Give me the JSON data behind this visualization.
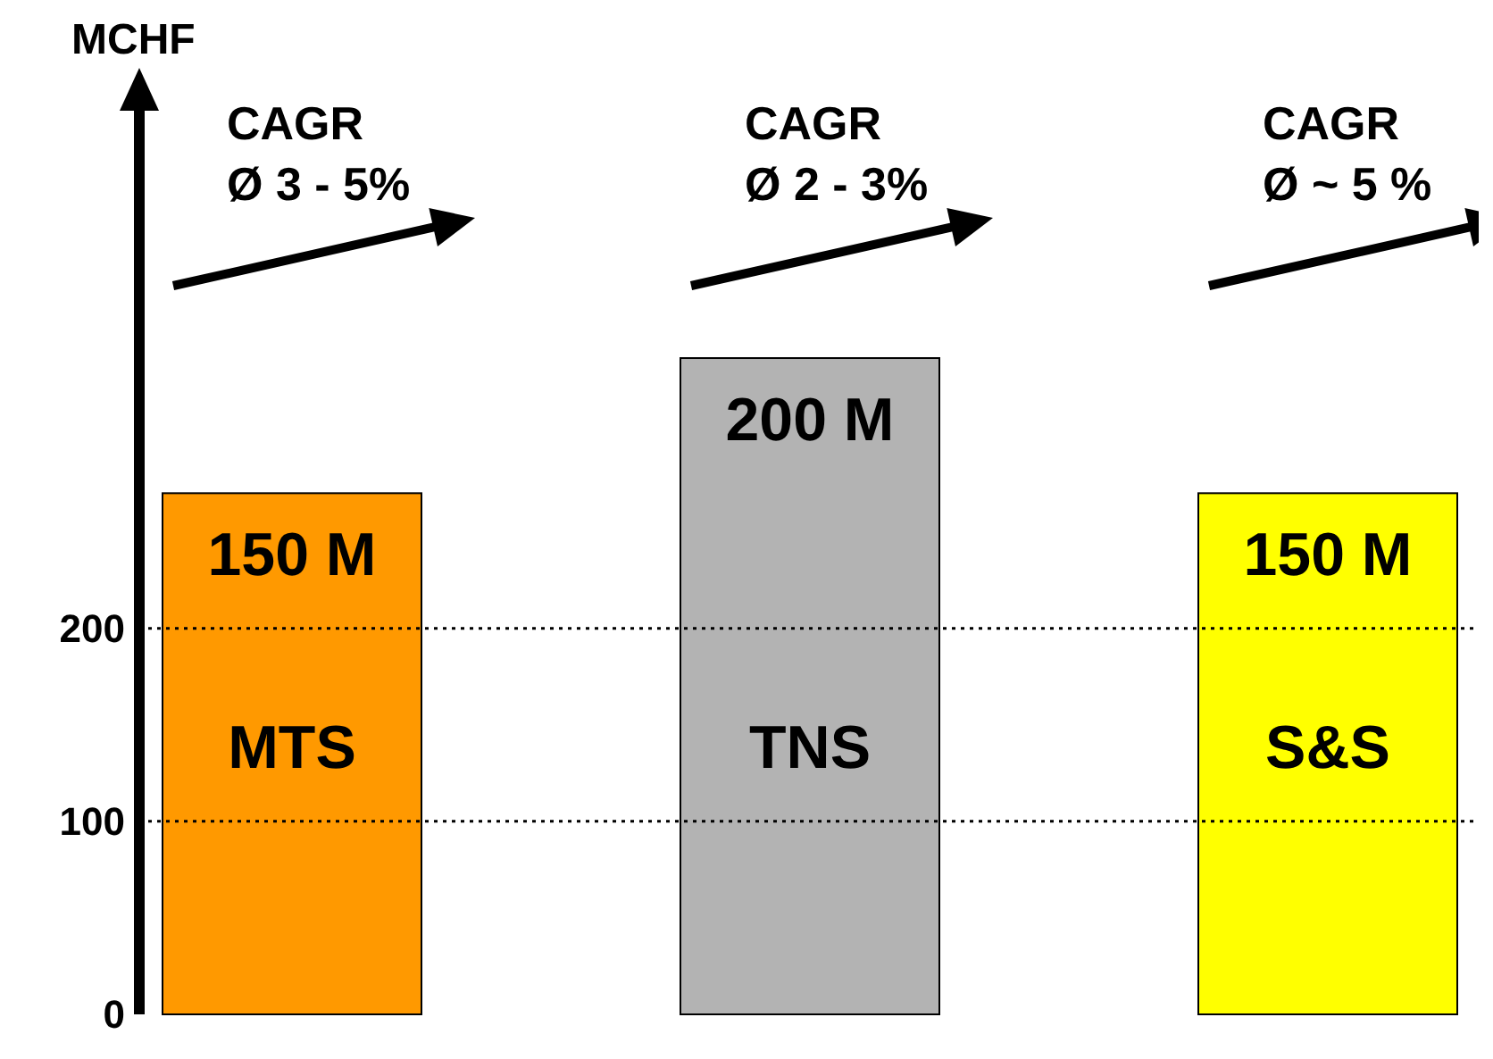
{
  "chart_data": {
    "type": "bar",
    "ylabel": "MCHF",
    "categories": [
      "MTS",
      "TNS",
      "S&S"
    ],
    "values": [
      270,
      340,
      270
    ],
    "colors": [
      "#ff9900",
      "#b3b3b3",
      "#ffff00"
    ],
    "ylim": [
      0,
      470
    ],
    "yticks": [
      0,
      100,
      200
    ],
    "ref_lines": [
      {
        "axis": "y",
        "value": 100,
        "line_style": "dotted"
      },
      {
        "axis": "y",
        "value": 200,
        "line_style": "dotted"
      }
    ],
    "annotations": [
      "CAGR\nØ 3 - 5%",
      "CAGR\nØ 2 - 3%",
      "CAGR\nØ ~ 5 %",
      {
        "text": "150 M",
        "x": "MTS",
        "y": 270
      },
      {
        "text": "200 M",
        "x": "TNS",
        "y": 340
      },
      {
        "text": "150 M",
        "x": "S&S",
        "y": 270
      }
    ]
  }
}
